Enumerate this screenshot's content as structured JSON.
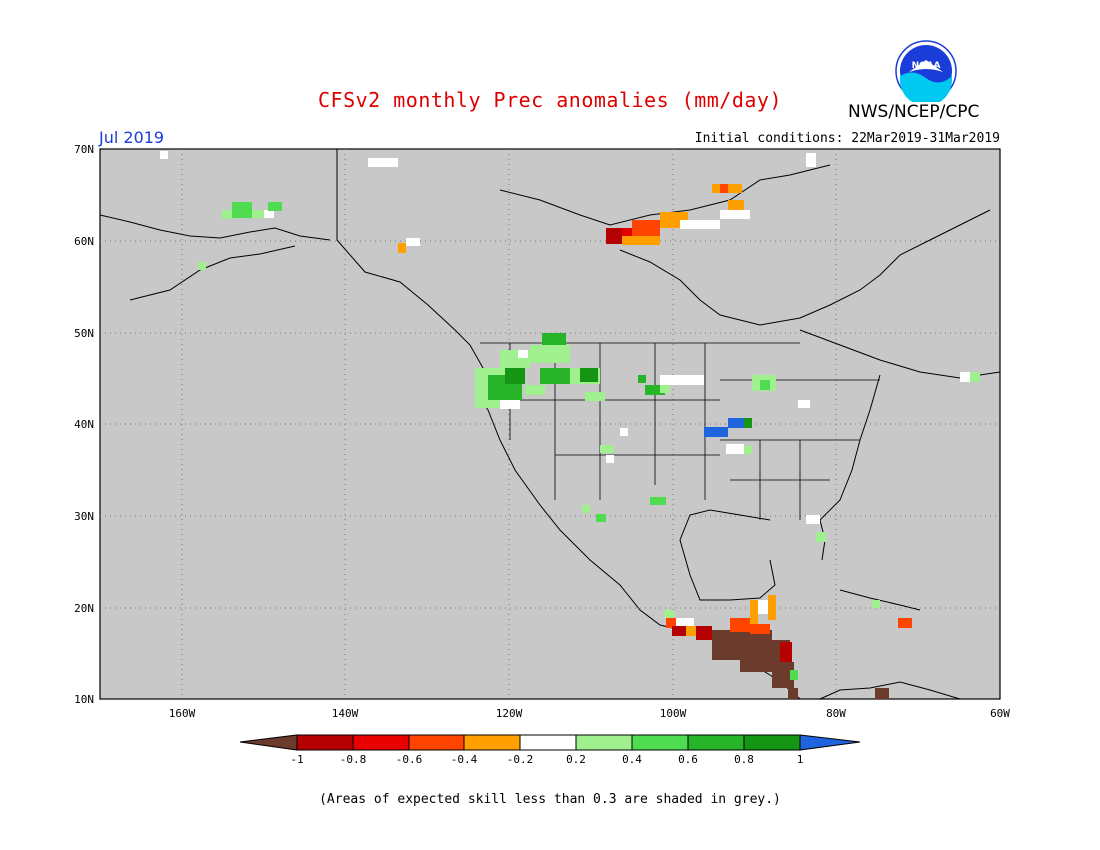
{
  "title": "CFSv2 monthly Prec anomalies (mm/day)",
  "month": "Jul 2019",
  "initial_conditions": "Initial conditions: 22Mar2019-31Mar2019",
  "agency": "NWS/NCEP/CPC",
  "logo_text": "NOAA",
  "footnote": "(Areas of expected skill less than 0.3 are shaded in grey.)",
  "map": {
    "lon_range": [
      -170,
      -60
    ],
    "lat_range": [
      10,
      70
    ],
    "lat_labels": [
      "70N",
      "60N",
      "50N",
      "40N",
      "30N",
      "20N",
      "10N"
    ],
    "lon_labels": [
      "160W",
      "140W",
      "120W",
      "100W",
      "80W",
      "60W"
    ],
    "background_color": "#c8c8c8"
  },
  "colorbar": {
    "tick_labels": [
      "-1",
      "-0.8",
      "-0.6",
      "-0.4",
      "-0.2",
      "0.2",
      "0.4",
      "0.6",
      "0.8",
      "1"
    ],
    "colors": [
      "#6b3b2b",
      "#b40000",
      "#e60000",
      "#ff4400",
      "#ffa000",
      "#ffffff",
      "#a0f090",
      "#50dc50",
      "#28b428",
      "#149614",
      "#1e64dc"
    ]
  }
}
